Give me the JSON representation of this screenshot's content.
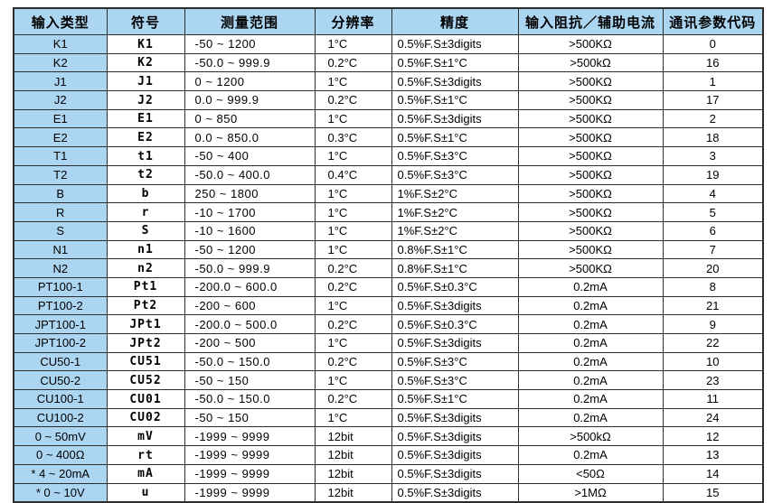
{
  "colors": {
    "header_bg": "#abd5f1",
    "first_col_bg": "#abd5f1",
    "border": "#2d2d2d",
    "cell_bg": "#ffffff",
    "text": "#000000"
  },
  "table": {
    "columns": [
      {
        "key": "input",
        "label": "输入类型"
      },
      {
        "key": "symbol",
        "label": "符号"
      },
      {
        "key": "range",
        "label": "测量范围"
      },
      {
        "key": "res",
        "label": "分辨率"
      },
      {
        "key": "acc",
        "label": "精度"
      },
      {
        "key": "imp",
        "label": "输入阻抗／辅助电流"
      },
      {
        "key": "code",
        "label": "通讯参数代码"
      }
    ],
    "rows": [
      {
        "input": "K1",
        "symbol": "K1",
        "range": "-50 ~ 1200",
        "res": "1°C",
        "acc": "0.5%F.S±3digits",
        "imp": ">500KΩ",
        "code": "0"
      },
      {
        "input": "K2",
        "symbol": "K2",
        "range": "-50.0 ~ 999.9",
        "res": "0.2°C",
        "acc": "0.5%F.S±1°C",
        "imp": ">500kΩ",
        "code": "16"
      },
      {
        "input": "J1",
        "symbol": "J1",
        "range": "0 ~ 1200",
        "res": "1°C",
        "acc": "0.5%F.S±3digits",
        "imp": ">500KΩ",
        "code": "1"
      },
      {
        "input": "J2",
        "symbol": "J2",
        "range": "0.0 ~ 999.9",
        "res": "0.2°C",
        "acc": "0.5%F.S±1°C",
        "imp": ">500KΩ",
        "code": "17"
      },
      {
        "input": "E1",
        "symbol": "E1",
        "range": "0 ~ 850",
        "res": "1°C",
        "acc": "0.5%F.S±3digits",
        "imp": ">500KΩ",
        "code": "2"
      },
      {
        "input": "E2",
        "symbol": "E2",
        "range": "0.0 ~ 850.0",
        "res": "0.3°C",
        "acc": "0.5%F.S±1°C",
        "imp": ">500KΩ",
        "code": "18"
      },
      {
        "input": "T1",
        "symbol": "t1",
        "range": "-50 ~ 400",
        "res": "1°C",
        "acc": "0.5%F.S±3°C",
        "imp": ">500KΩ",
        "code": "3"
      },
      {
        "input": "T2",
        "symbol": "t2",
        "range": "-50.0 ~ 400.0",
        "res": "0.4°C",
        "acc": "0.5%F.S±3°C",
        "imp": ">500KΩ",
        "code": "19"
      },
      {
        "input": "B",
        "symbol": "b",
        "range": "250 ~ 1800",
        "res": "1°C",
        "acc": "1%F.S±2°C",
        "imp": ">500KΩ",
        "code": "4"
      },
      {
        "input": "R",
        "symbol": "r",
        "range": "-10 ~ 1700",
        "res": "1°C",
        "acc": "1%F.S±2°C",
        "imp": ">500KΩ",
        "code": "5"
      },
      {
        "input": "S",
        "symbol": "S",
        "range": "-10 ~ 1600",
        "res": "1°C",
        "acc": "1%F.S±2°C",
        "imp": ">500KΩ",
        "code": "6"
      },
      {
        "input": "N1",
        "symbol": "n1",
        "range": "-50 ~ 1200",
        "res": "1°C",
        "acc": "0.8%F.S±1°C",
        "imp": ">500KΩ",
        "code": "7"
      },
      {
        "input": "N2",
        "symbol": "n2",
        "range": "-50.0 ~ 999.9",
        "res": "0.2°C",
        "acc": "0.8%F.S±1°C",
        "imp": ">500KΩ",
        "code": "20"
      },
      {
        "input": "PT100-1",
        "symbol": "Pt1",
        "range": "-200.0 ~ 600.0",
        "res": "0.2°C",
        "acc": "0.5%F.S±0.3°C",
        "imp": "0.2mA",
        "code": "8"
      },
      {
        "input": "PT100-2",
        "symbol": "Pt2",
        "range": "-200 ~ 600",
        "res": "1°C",
        "acc": "0.5%F.S±3digits",
        "imp": "0.2mA",
        "code": "21"
      },
      {
        "input": "JPT100-1",
        "symbol": "JPt1",
        "range": "-200.0 ~ 500.0",
        "res": "0.2°C",
        "acc": "0.5%F.S±0.3°C",
        "imp": "0.2mA",
        "code": "9"
      },
      {
        "input": "JPT100-2",
        "symbol": "JPt2",
        "range": "-200 ~ 500",
        "res": "1°C",
        "acc": "0.5%F.S±3digits",
        "imp": "0.2mA",
        "code": "22"
      },
      {
        "input": "CU50-1",
        "symbol": "CU51",
        "range": "-50.0 ~ 150.0",
        "res": "0.2°C",
        "acc": "0.5%F.S±3°C",
        "imp": "0.2mA",
        "code": "10"
      },
      {
        "input": "CU50-2",
        "symbol": "CU52",
        "range": "-50 ~ 150",
        "res": "1°C",
        "acc": "0.5%F.S±3°C",
        "imp": "0.2mA",
        "code": "23"
      },
      {
        "input": "CU100-1",
        "symbol": "CU01",
        "range": "-50.0 ~ 150.0",
        "res": "0.2°C",
        "acc": "0.5%F.S±1°C",
        "imp": "0.2mA",
        "code": "11"
      },
      {
        "input": "CU100-2",
        "symbol": "CU02",
        "range": "-50 ~ 150",
        "res": "1°C",
        "acc": "0.5%F.S±3digits",
        "imp": "0.2mA",
        "code": "24"
      },
      {
        "input": "0 ~ 50mV",
        "symbol": "mV",
        "range": "-1999 ~ 9999",
        "res": "12bit",
        "acc": "0.5%F.S±3digits",
        "imp": ">500kΩ",
        "code": "12"
      },
      {
        "input": "0 ~ 400Ω",
        "symbol": "rt",
        "range": "-1999 ~ 9999",
        "res": "12bit",
        "acc": "0.5%F.S±3digits",
        "imp": "0.2mA",
        "code": "13"
      },
      {
        "input": "* 4 ~ 20mA",
        "symbol": "mA",
        "range": "-1999 ~ 9999",
        "res": "12bit",
        "acc": "0.5%F.S±3digits",
        "imp": "<50Ω",
        "code": "14"
      },
      {
        "input": "* 0 ~ 10V",
        "symbol": "u",
        "range": "-1999 ~ 9999",
        "res": "12bit",
        "acc": "0.5%F.S±3digits",
        "imp": ">1MΩ",
        "code": "15"
      }
    ]
  }
}
